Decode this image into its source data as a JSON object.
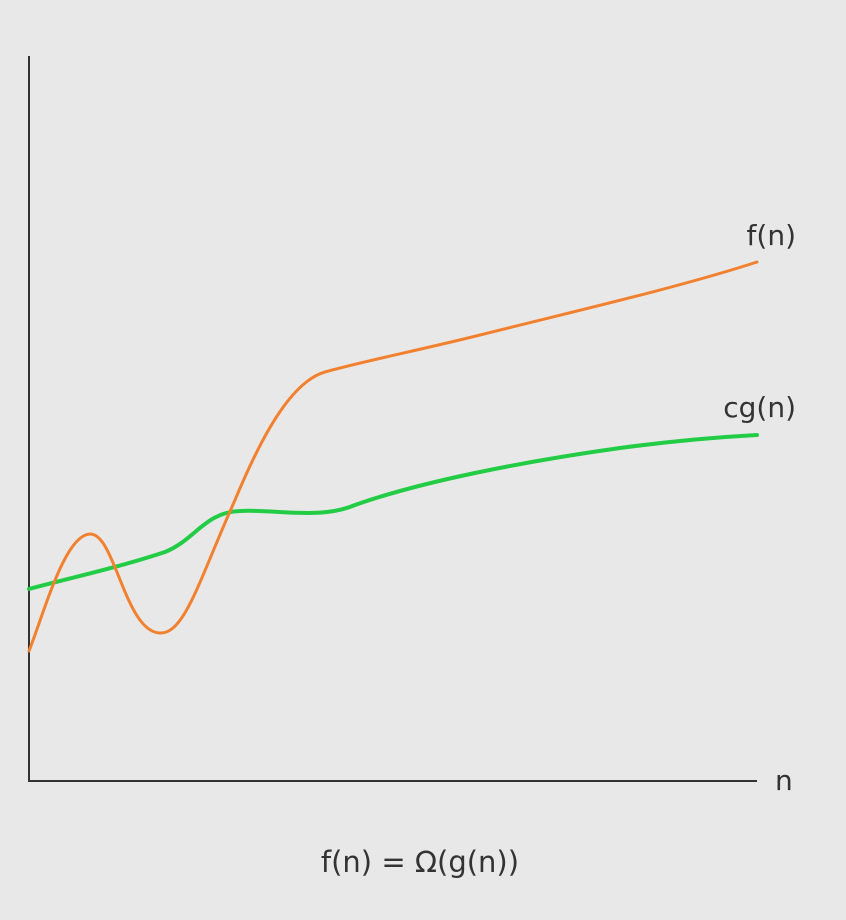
{
  "chart_data": {
    "type": "line",
    "xlabel": "n",
    "ylabel": "",
    "grid": false,
    "series": [
      {
        "name": "f(n)",
        "color": "#f2812f"
      },
      {
        "name": "cg(n)",
        "color": "#22cc44"
      }
    ],
    "caption": "f(n) = Ω(g(n))"
  },
  "colors": {
    "background": "#e8e8e8",
    "axis": "#333333",
    "text": "#333333"
  }
}
